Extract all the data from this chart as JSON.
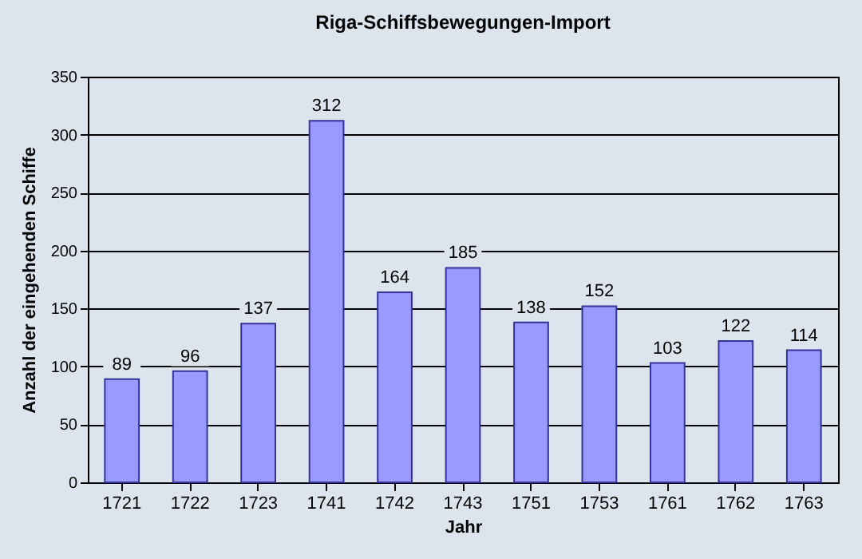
{
  "chart_data": {
    "type": "bar",
    "title": "Riga-Schiffsbewegungen-Import",
    "xlabel": "Jahr",
    "ylabel": "Anzahl der eingehenden Schiffe",
    "categories": [
      "1721",
      "1722",
      "1723",
      "1741",
      "1742",
      "1743",
      "1751",
      "1753",
      "1761",
      "1762",
      "1763"
    ],
    "values": [
      89,
      96,
      137,
      312,
      164,
      185,
      138,
      152,
      103,
      122,
      114
    ],
    "color": "#9999ff",
    "ylim": [
      0,
      350
    ],
    "yticks": [
      0,
      50,
      100,
      150,
      200,
      250,
      300,
      350
    ],
    "grid": "y",
    "data_labels": true
  }
}
